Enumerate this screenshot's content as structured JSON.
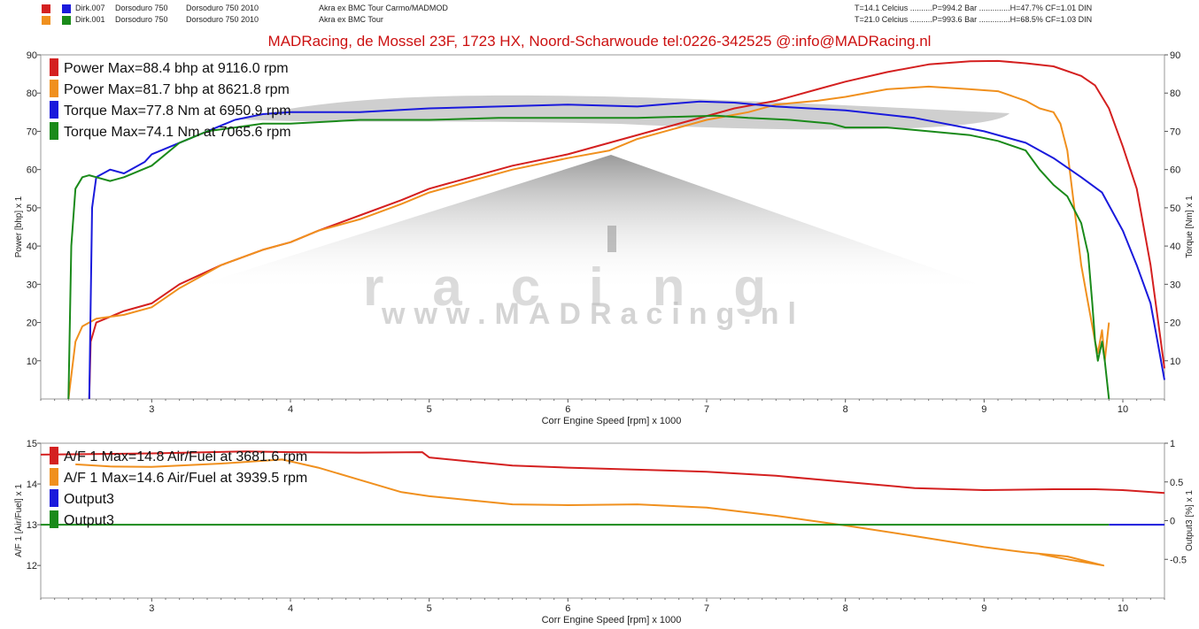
{
  "header": {
    "runs": [
      {
        "name": "Dirk.007",
        "bike": "Dorsoduro 750",
        "model": "Dorsoduro 750 2010",
        "exhaust": "Akra ex BMC Tour Carmo/MADMOD",
        "conditions": "T=14.1 Celcius ..........P=994.2 Bar ..............H=47.7% CF=1.01 DIN",
        "colors": [
          "#d42020",
          "#1a1adc"
        ]
      },
      {
        "name": "Dirk.001",
        "bike": "Dorsoduro 750",
        "model": "Dorsoduro 750 2010",
        "exhaust": "Akra ex BMC Tour",
        "conditions": "T=21.0 Celcius ..........P=993.6 Bar ..............H=68.5% CF=1.03 DIN",
        "colors": [
          "#f0901e",
          "#1a8a1a"
        ]
      }
    ],
    "title": "MADRacing,    de Mossel 23F, 1723 HX, Noord-Scharwoude     tel:0226-342525    @:info@MADRacing.nl"
  },
  "watermark": {
    "text": "www.MADRacing.nl",
    "word": "racing"
  },
  "chart_data": [
    {
      "type": "line",
      "xlabel": "Corr Engine Speed [rpm] x 1000",
      "ylabel": "Power [bhp] x 1",
      "y2label": "Torque [Nm] x 1",
      "xlim": [
        2.2,
        10.3
      ],
      "ylim": [
        0,
        90
      ],
      "y2lim": [
        0,
        90
      ],
      "xticks": [
        3,
        4,
        5,
        6,
        7,
        8,
        9,
        10
      ],
      "yticks": [
        10,
        20,
        30,
        40,
        50,
        60,
        70,
        80,
        90
      ],
      "y2ticks": [
        10,
        20,
        30,
        40,
        50,
        60,
        70,
        80,
        90
      ],
      "grid": false,
      "legend": "top-left",
      "series": [
        {
          "name": "Power",
          "color": "#d42020",
          "legend": "Power  Max=88.4 bhp at 9116.0 rpm",
          "x": [
            2.55,
            2.56,
            2.6,
            2.8,
            3.0,
            3.2,
            3.5,
            3.8,
            4.0,
            4.2,
            4.5,
            4.8,
            5.0,
            5.3,
            5.6,
            6.0,
            6.3,
            6.6,
            6.9,
            7.2,
            7.5,
            7.8,
            8.0,
            8.3,
            8.6,
            8.9,
            9.1,
            9.3,
            9.5,
            9.7,
            9.8,
            9.9,
            10.0,
            10.1,
            10.2,
            10.3
          ],
          "y": [
            0,
            15,
            20,
            23,
            25,
            30,
            35,
            39,
            41,
            44,
            48,
            52,
            55,
            58,
            61,
            64,
            67,
            70,
            73,
            76,
            78,
            81,
            83,
            85.5,
            87.5,
            88.3,
            88.4,
            87.8,
            87,
            84.5,
            82,
            76,
            66,
            55,
            35,
            8
          ]
        },
        {
          "name": "Power",
          "color": "#f0901e",
          "legend": "Power  Max=81.7 bhp at 8621.8 rpm",
          "x": [
            2.4,
            2.45,
            2.5,
            2.6,
            2.8,
            3.0,
            3.2,
            3.5,
            3.8,
            4.0,
            4.2,
            4.5,
            4.8,
            5.0,
            5.3,
            5.6,
            6.0,
            6.3,
            6.5,
            6.8,
            7.0,
            7.3,
            7.5,
            7.8,
            8.0,
            8.3,
            8.6,
            8.9,
            9.1,
            9.3,
            9.4,
            9.5,
            9.55,
            9.6,
            9.65,
            9.7,
            9.75,
            9.8,
            9.82,
            9.85,
            9.87,
            9.9
          ],
          "y": [
            0,
            15,
            19,
            21,
            22,
            24,
            29,
            35,
            39,
            41,
            44,
            47,
            51,
            54,
            57,
            60,
            63,
            65,
            68,
            71,
            73,
            75,
            77,
            78,
            79,
            81,
            81.7,
            81,
            80.5,
            78,
            76,
            75,
            72,
            65,
            50,
            35,
            25,
            15,
            12,
            18,
            10,
            20
          ]
        },
        {
          "name": "Torque",
          "color": "#1a1adc",
          "legend": "Torque  Max=77.8 Nm at 6950.9 rpm",
          "x": [
            2.55,
            2.57,
            2.6,
            2.7,
            2.8,
            2.95,
            3.0,
            3.2,
            3.4,
            3.6,
            3.8,
            4.0,
            4.5,
            5.0,
            5.5,
            6.0,
            6.5,
            6.95,
            7.2,
            7.5,
            8.0,
            8.5,
            9.0,
            9.3,
            9.5,
            9.7,
            9.85,
            10.0,
            10.1,
            10.2,
            10.25,
            10.3
          ],
          "y": [
            0,
            50,
            58,
            60,
            59,
            62,
            64,
            67,
            70,
            73,
            74.5,
            75,
            75,
            76,
            76.5,
            77,
            76.5,
            77.8,
            77.5,
            76.5,
            75.5,
            73.5,
            70,
            67,
            63,
            58,
            54,
            44,
            35,
            25,
            15,
            5
          ]
        },
        {
          "name": "Torque",
          "color": "#1a8a1a",
          "legend": "Torque  Max=74.1 Nm at 7065.6 rpm",
          "x": [
            2.4,
            2.42,
            2.45,
            2.5,
            2.55,
            2.6,
            2.7,
            2.8,
            3.0,
            3.2,
            3.4,
            3.6,
            3.8,
            4.0,
            4.5,
            5.0,
            5.5,
            6.0,
            6.5,
            7.07,
            7.3,
            7.6,
            7.9,
            8.0,
            8.3,
            8.6,
            8.9,
            9.1,
            9.3,
            9.4,
            9.5,
            9.6,
            9.7,
            9.75,
            9.78,
            9.8,
            9.82,
            9.85,
            9.87,
            9.9
          ],
          "y": [
            0,
            40,
            55,
            58,
            58.5,
            58,
            57,
            58,
            61,
            67,
            70,
            71,
            72,
            72,
            73,
            73,
            73.5,
            73.5,
            73.5,
            74.1,
            73.5,
            73,
            72,
            71,
            71,
            70,
            69,
            67.5,
            65,
            60,
            56,
            53,
            46,
            38,
            25,
            15,
            10,
            15,
            10,
            0
          ]
        }
      ]
    },
    {
      "type": "line",
      "xlabel": "Corr Engine Speed [rpm] x 1000",
      "ylabel": "A/F 1 [Air/Fuel] x 1",
      "y2label": "Output3 [%] x 1",
      "xlim": [
        2.2,
        10.3
      ],
      "ylim": [
        11.2,
        15
      ],
      "y2lim": [
        -1,
        1
      ],
      "xticks": [
        3,
        4,
        5,
        6,
        7,
        8,
        9,
        10
      ],
      "yticks": [
        12,
        13,
        14,
        15
      ],
      "y2ticks": [
        -0.5,
        0,
        0.5,
        1
      ],
      "y2ticklabels": [
        "-0.5",
        "0",
        "0.5",
        "1"
      ],
      "grid": false,
      "legend": "top-left",
      "series": [
        {
          "name": "A/F 1",
          "color": "#d42020",
          "legend": "A/F 1  Max=14.8 Air/Fuel at 3681.6 rpm",
          "x": [
            2.2,
            2.5,
            3.0,
            3.68,
            4.0,
            4.5,
            4.95,
            5.0,
            5.3,
            5.6,
            6.0,
            6.5,
            7.0,
            7.5,
            8.0,
            8.5,
            9.0,
            9.5,
            9.8,
            10.0,
            10.3
          ],
          "y": [
            14.72,
            14.73,
            14.75,
            14.8,
            14.78,
            14.77,
            14.78,
            14.65,
            14.55,
            14.45,
            14.4,
            14.35,
            14.3,
            14.2,
            14.05,
            13.9,
            13.85,
            13.87,
            13.87,
            13.85,
            13.78
          ]
        },
        {
          "name": "A/F 1",
          "color": "#f0901e",
          "legend": "A/F 1  Max=14.6 Air/Fuel at 3939.5 rpm",
          "x": [
            2.45,
            2.7,
            3.0,
            3.5,
            3.94,
            4.2,
            4.5,
            4.8,
            5.0,
            5.3,
            5.6,
            6.0,
            6.5,
            7.0,
            7.5,
            8.0,
            8.5,
            9.0,
            9.3,
            9.6,
            9.86,
            9.6,
            9.4
          ],
          "y": [
            14.48,
            14.43,
            14.42,
            14.5,
            14.6,
            14.4,
            14.1,
            13.8,
            13.7,
            13.6,
            13.5,
            13.48,
            13.5,
            13.42,
            13.22,
            12.98,
            12.72,
            12.45,
            12.32,
            12.22,
            12.0,
            12.15,
            12.28
          ]
        },
        {
          "name": "Output3",
          "color": "#1a1adc",
          "legend": "Output3",
          "x": [
            9.9,
            10.3
          ],
          "y": [
            13.0,
            13.0
          ]
        },
        {
          "name": "Output3",
          "color": "#1a8a1a",
          "legend": "Output3",
          "x": [
            2.2,
            9.9
          ],
          "y": [
            13.0,
            13.0
          ]
        }
      ]
    }
  ]
}
